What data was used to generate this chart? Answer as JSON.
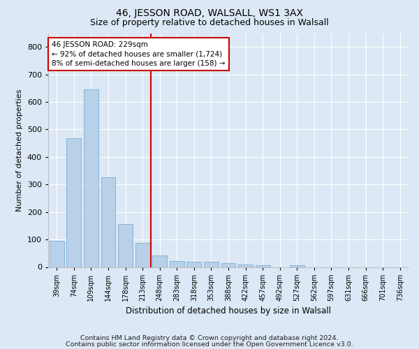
{
  "title": "46, JESSON ROAD, WALSALL, WS1 3AX",
  "subtitle": "Size of property relative to detached houses in Walsall",
  "xlabel": "Distribution of detached houses by size in Walsall",
  "ylabel": "Number of detached properties",
  "bar_labels": [
    "39sqm",
    "74sqm",
    "109sqm",
    "144sqm",
    "178sqm",
    "213sqm",
    "248sqm",
    "283sqm",
    "318sqm",
    "353sqm",
    "388sqm",
    "422sqm",
    "457sqm",
    "492sqm",
    "527sqm",
    "562sqm",
    "597sqm",
    "631sqm",
    "666sqm",
    "701sqm",
    "736sqm"
  ],
  "bar_values": [
    95,
    468,
    645,
    325,
    155,
    88,
    42,
    22,
    20,
    20,
    14,
    8,
    6,
    0,
    6,
    0,
    0,
    0,
    0,
    0,
    0
  ],
  "bar_color": "#b8d0e8",
  "bar_edge_color": "#7aafd4",
  "vertical_line_color": "#cc0000",
  "annotation_text": "46 JESSON ROAD: 229sqm\n← 92% of detached houses are smaller (1,724)\n8% of semi-detached houses are larger (158) →",
  "annotation_box_color": "#ffffff",
  "annotation_box_edge_color": "#cc0000",
  "ylim": [
    0,
    850
  ],
  "yticks": [
    0,
    100,
    200,
    300,
    400,
    500,
    600,
    700,
    800
  ],
  "background_color": "#dce8f5",
  "plot_background_color": "#dce8f5",
  "footer_line1": "Contains HM Land Registry data © Crown copyright and database right 2024.",
  "footer_line2": "Contains public sector information licensed under the Open Government Licence v3.0.",
  "title_fontsize": 10,
  "subtitle_fontsize": 9,
  "annotation_fontsize": 7.5,
  "footer_fontsize": 6.8,
  "ylabel_fontsize": 8,
  "xlabel_fontsize": 8.5
}
